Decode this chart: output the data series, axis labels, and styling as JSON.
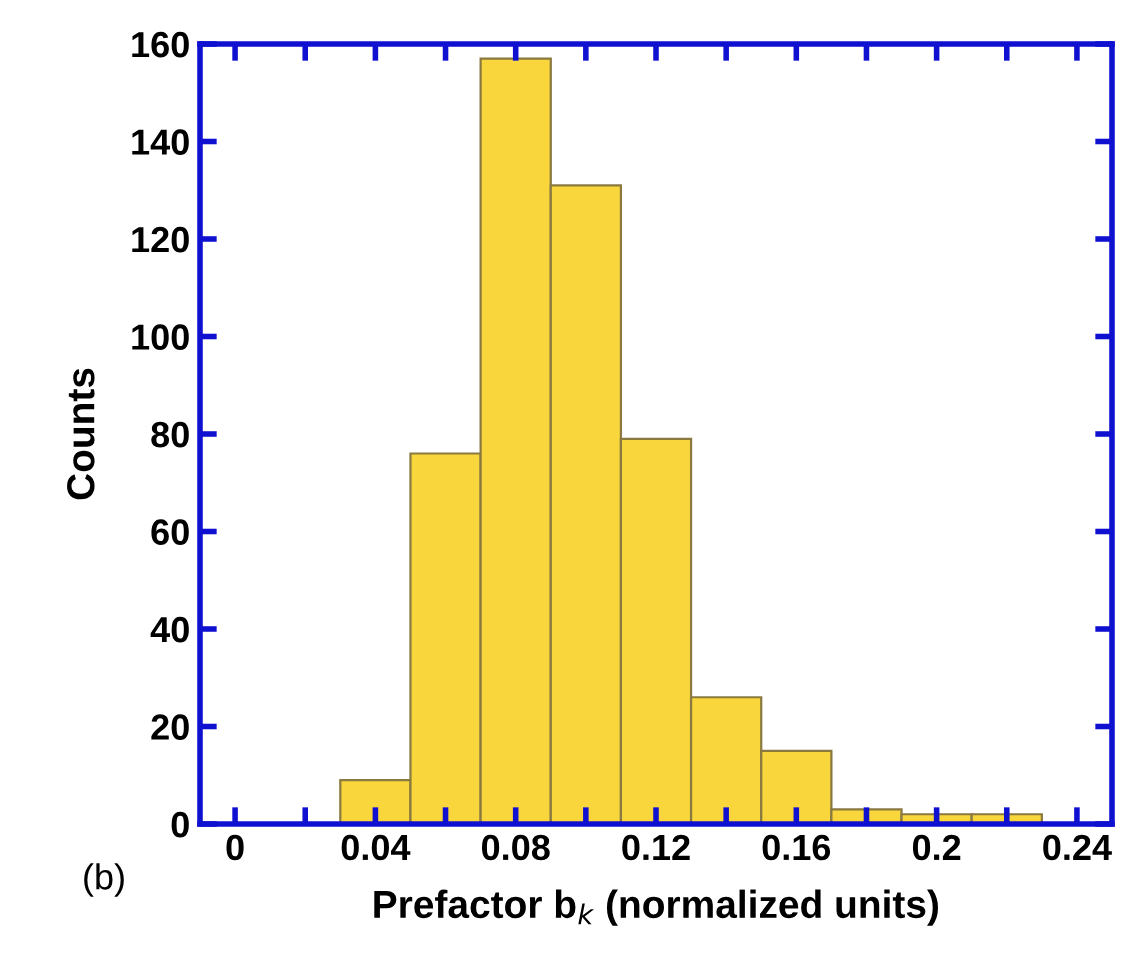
{
  "chart_data": {
    "type": "histogram",
    "xlabel": "Prefactor b$_{k}$ (normalized units)",
    "ylabel": "Counts",
    "bins": [
      0.03,
      0.05,
      0.07,
      0.09,
      0.11,
      0.13,
      0.15,
      0.17,
      0.19,
      0.21,
      0.23
    ],
    "values": [
      9,
      76,
      157,
      131,
      79,
      26,
      15,
      3,
      2,
      2
    ],
    "color": "#f9d63c",
    "xlim": [
      -0.01,
      0.25
    ],
    "xticks": [
      0,
      {
        "value": 0.02,
        "label": null
      },
      0.04,
      {
        "value": 0.06,
        "label": null
      },
      0.08,
      {
        "value": 0.1,
        "label": null
      },
      0.12,
      {
        "value": 0.14,
        "label": null
      },
      0.16,
      {
        "value": 0.18,
        "label": null
      },
      0.2,
      {
        "value": 0.22,
        "label": null
      },
      0.24
    ],
    "ylim": [
      0,
      160
    ],
    "yticks": [
      0,
      20,
      40,
      60,
      80,
      100,
      120,
      140,
      160
    ],
    "grid": false,
    "annotations": [
      "(b)"
    ]
  }
}
